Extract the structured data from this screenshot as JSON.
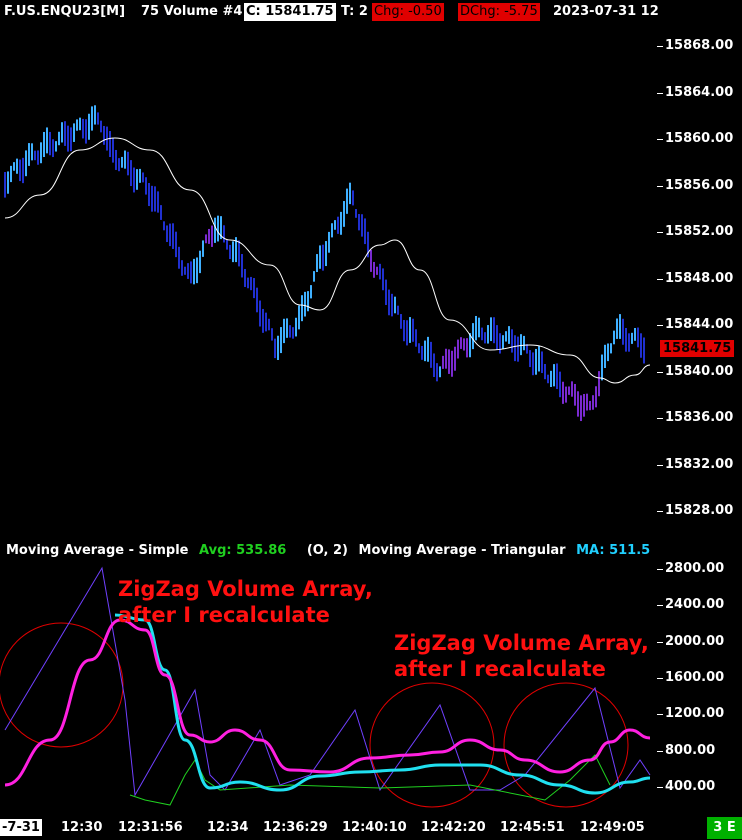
{
  "header": {
    "symbol": "F.US.ENQU23[M]",
    "bar_period": "75 Volume #4",
    "close": "C: 15841.75",
    "trades": "T: 2",
    "chg": "Chg: -0.50",
    "dchg": "DChg: -5.75",
    "date": "2023-07-31 12"
  },
  "price_axis": {
    "labels": [
      "15868.00",
      "15864.00",
      "15860.00",
      "15856.00",
      "15852.00",
      "15848.00",
      "15844.00",
      "15840.00",
      "15836.00",
      "15832.00",
      "15828.00"
    ],
    "current_price": "15841.75",
    "current_color": "#e00000"
  },
  "study_header": {
    "sma_label": "Moving Average - Simple",
    "sma_value": "Avg: 535.86",
    "params": "(O, 2)",
    "tma_label": "Moving Average - Triangular",
    "tma_value": "MA: 511.5",
    "sma_value_color": "#20d020",
    "tma_value_color": "#20d0ff"
  },
  "volume_axis": {
    "labels": [
      "2800.00",
      "2400.00",
      "2000.00",
      "1600.00",
      "1200.00",
      "800.00",
      "400.00"
    ]
  },
  "time_axis": {
    "date_label": "-7-31",
    "labels": [
      "12:30",
      "12:31:56",
      "12:34",
      "12:36:29",
      "12:40:10",
      "12:42:20",
      "12:45:51",
      "12:49:05"
    ]
  },
  "status_badge": "3 E",
  "annotations": {
    "left_line1": "ZigZag Volume Array,",
    "left_line2": "after I recalculate",
    "right_line1": "ZigZag Volume Array,",
    "right_line2": "after I recalculate"
  },
  "colors": {
    "bar_up": "#3fb0ff",
    "bar_down": "#2030d0",
    "bar_purple": "#7a2ad0",
    "ma_price": "#ffffff",
    "ma_triangular": "#20e0f0",
    "ma_simple": "#ff20e0",
    "zigzag": "#7040ff",
    "green_line": "#20d020",
    "annotation": "#ff1010"
  }
}
